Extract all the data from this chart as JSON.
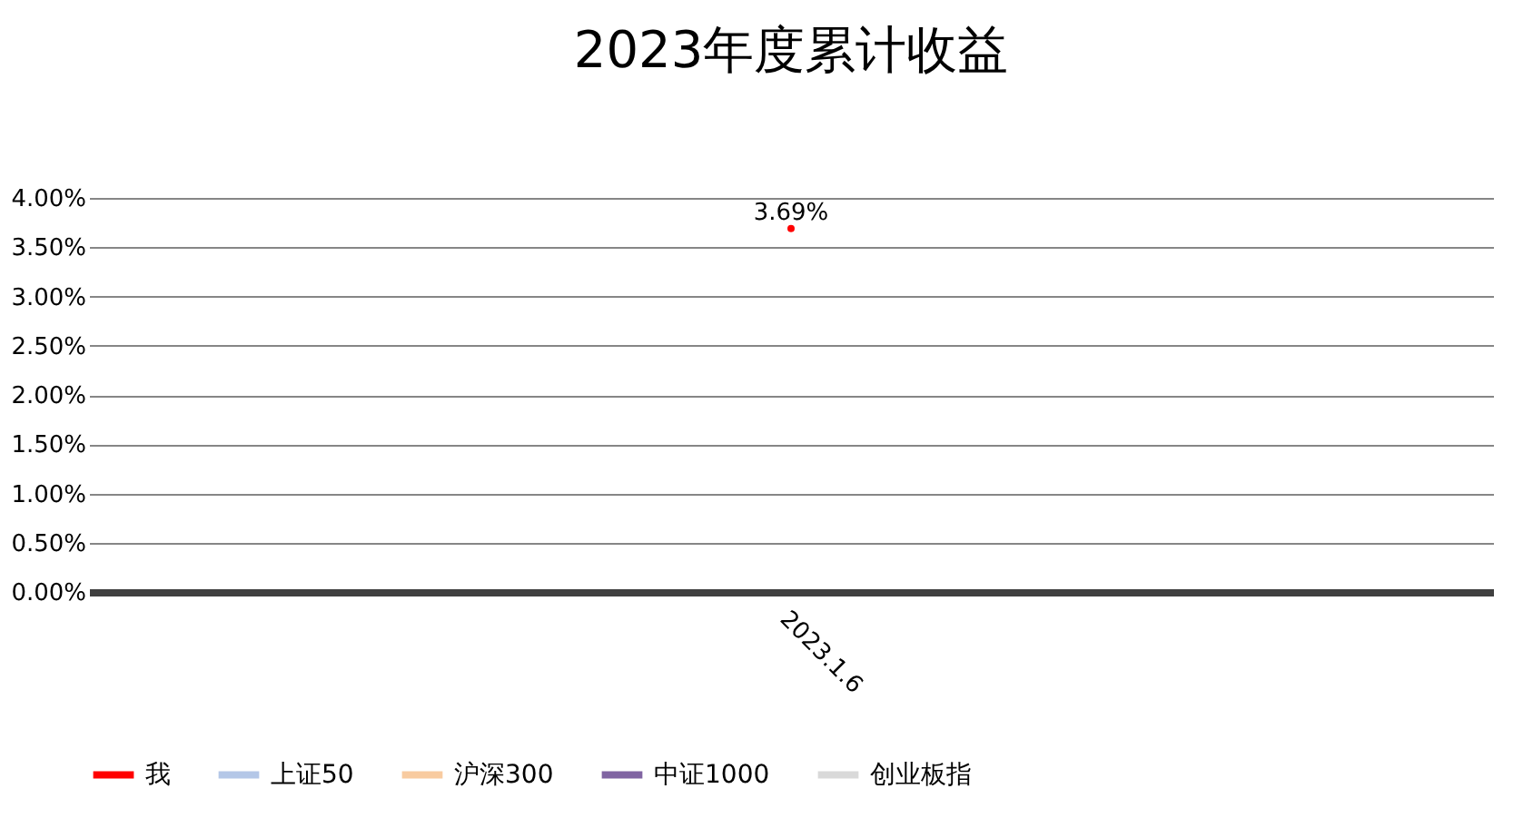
{
  "chart_data": {
    "type": "line",
    "title": "2023年度累计收益",
    "categories": [
      "2023.1.6"
    ],
    "series": [
      {
        "name": "我",
        "color": "#ff0000",
        "values": [
          3.69
        ],
        "value_labels": [
          "3.69%"
        ]
      },
      {
        "name": "上证50",
        "color": "#b4c7e7",
        "values": [
          null
        ]
      },
      {
        "name": "沪深300",
        "color": "#f8cba0",
        "values": [
          null
        ]
      },
      {
        "name": "中证1000",
        "color": "#8064a2",
        "values": [
          null
        ]
      },
      {
        "name": "创业板指",
        "color": "#d9d9d9",
        "values": [
          null
        ]
      }
    ],
    "ylim": [
      0,
      4
    ],
    "yticks": [
      {
        "value": 0,
        "label": "0.00%"
      },
      {
        "value": 0.5,
        "label": "0.50%"
      },
      {
        "value": 1,
        "label": "1.00%"
      },
      {
        "value": 1.5,
        "label": "1.50%"
      },
      {
        "value": 2,
        "label": "2.00%"
      },
      {
        "value": 2.5,
        "label": "2.50%"
      },
      {
        "value": 3,
        "label": "3.00%"
      },
      {
        "value": 3.5,
        "label": "3.50%"
      },
      {
        "value": 4,
        "label": "4.00%"
      }
    ],
    "grid": "y",
    "legend": "bottom",
    "marker": "circle"
  }
}
